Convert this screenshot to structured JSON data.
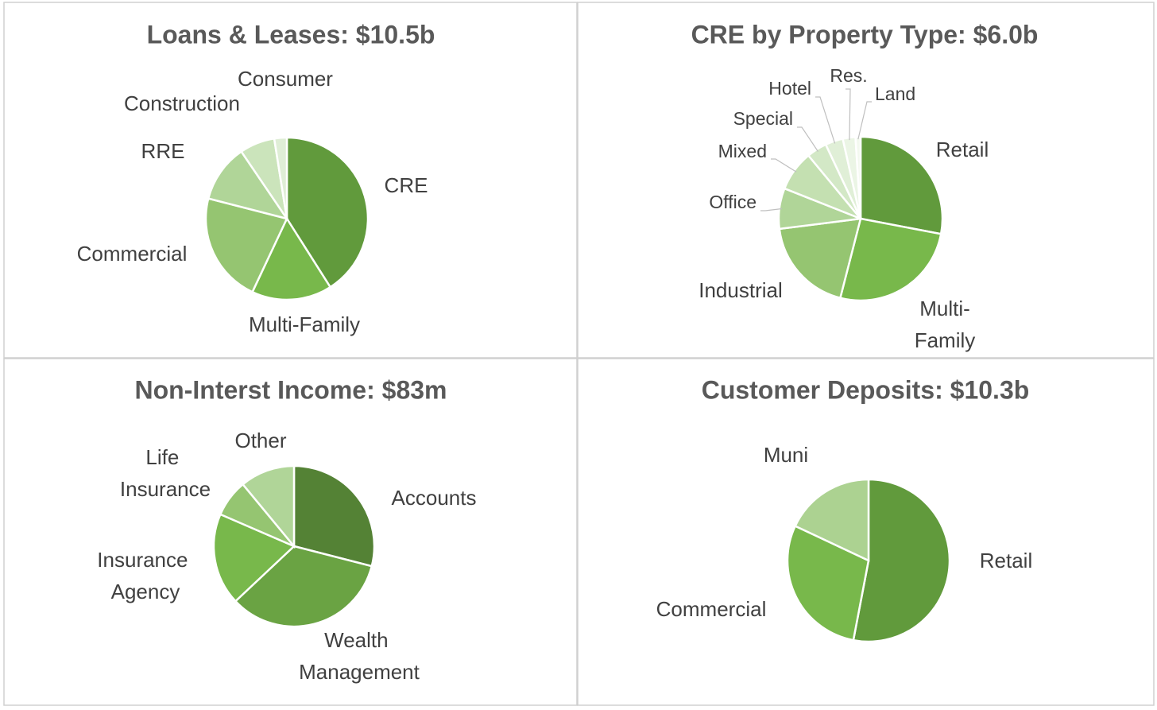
{
  "chart_data": [
    {
      "type": "pie",
      "title": "Loans & Leases: $10.5b",
      "categories": [
        "CRE",
        "Multi-Family",
        "Commercial",
        "RRE",
        "Construction",
        "Consumer"
      ],
      "values": [
        41,
        16,
        22,
        11.5,
        7,
        2.5
      ],
      "colors": [
        "#619a3c",
        "#78b84b",
        "#95c571",
        "#b0d598",
        "#cbe4bb",
        "#dfeed6"
      ]
    },
    {
      "type": "pie",
      "title": "CRE by Property Type: $6.0b",
      "categories": [
        "Retail",
        "Multi-Family",
        "Industrial",
        "Office",
        "Mixed",
        "Special",
        "Hotel",
        "Res.",
        "Land"
      ],
      "values": [
        28,
        26,
        19,
        8,
        8,
        4,
        3.5,
        2.5,
        1
      ],
      "colors": [
        "#619a3c",
        "#78b84b",
        "#95c571",
        "#b0d598",
        "#c4e0b1",
        "#d3e8c6",
        "#e0efd7",
        "#ebf5e5",
        "#f3f9ef"
      ]
    },
    {
      "type": "pie",
      "title": "Non-Interst Income: $83m",
      "categories": [
        "Accounts",
        "Wealth Management",
        "Insurance Agency",
        "Life Insurance",
        "Other"
      ],
      "values": [
        29,
        34,
        18.5,
        7.5,
        11
      ],
      "colors": [
        "#548235",
        "#6aa343",
        "#78b84b",
        "#95c571",
        "#b0d598"
      ]
    },
    {
      "type": "pie",
      "title": "Customer Deposits: $10.3b",
      "categories": [
        "Retail",
        "Commercial",
        "Muni"
      ],
      "values": [
        53,
        29,
        18
      ],
      "colors": [
        "#619a3c",
        "#78b84b",
        "#acd291"
      ]
    }
  ]
}
